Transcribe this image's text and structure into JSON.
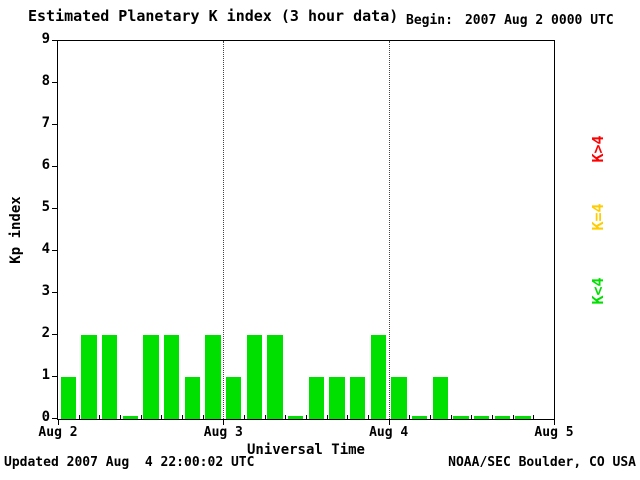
{
  "header": {
    "title": "Estimated Planetary K index (3 hour data)",
    "begin_label": "Begin:",
    "begin_value": "2007 Aug 2 0000 UTC"
  },
  "footer": {
    "updated": "Updated 2007 Aug  4 22:00:02 UTC",
    "credit": "NOAA/SEC Boulder, CO USA"
  },
  "chart_data": {
    "type": "bar",
    "title": "Estimated Planetary K index (3 hour data)",
    "xlabel": "Universal Time",
    "ylabel": "Kp index",
    "ylim": [
      0,
      9
    ],
    "y_ticks": [
      0,
      1,
      2,
      3,
      4,
      5,
      6,
      7,
      8,
      9
    ],
    "x_tick_labels": [
      "Aug 2",
      "Aug 3",
      "Aug 4",
      "Aug 5"
    ],
    "bars_per_day": 8,
    "hours_per_bar": 3,
    "begin": "2007 Aug 2 0000 UTC",
    "values": [
      1,
      2,
      2,
      0,
      2,
      2,
      1,
      2,
      1,
      2,
      2,
      0,
      1,
      1,
      1,
      2,
      1,
      0,
      1,
      0,
      0,
      0,
      0
    ],
    "colors": {
      "k_lt_4": "#00e000",
      "k_eq_4": "#ffcc00",
      "k_gt_4": "#ff0000"
    },
    "legend": [
      {
        "label": "K>4",
        "color": "#ff0000"
      },
      {
        "label": "K=4",
        "color": "#ffcc00"
      },
      {
        "label": "K<4",
        "color": "#00e000"
      }
    ],
    "grid": "dotted vertical lines at day boundaries",
    "legend_position": "right, rotated 90deg"
  }
}
